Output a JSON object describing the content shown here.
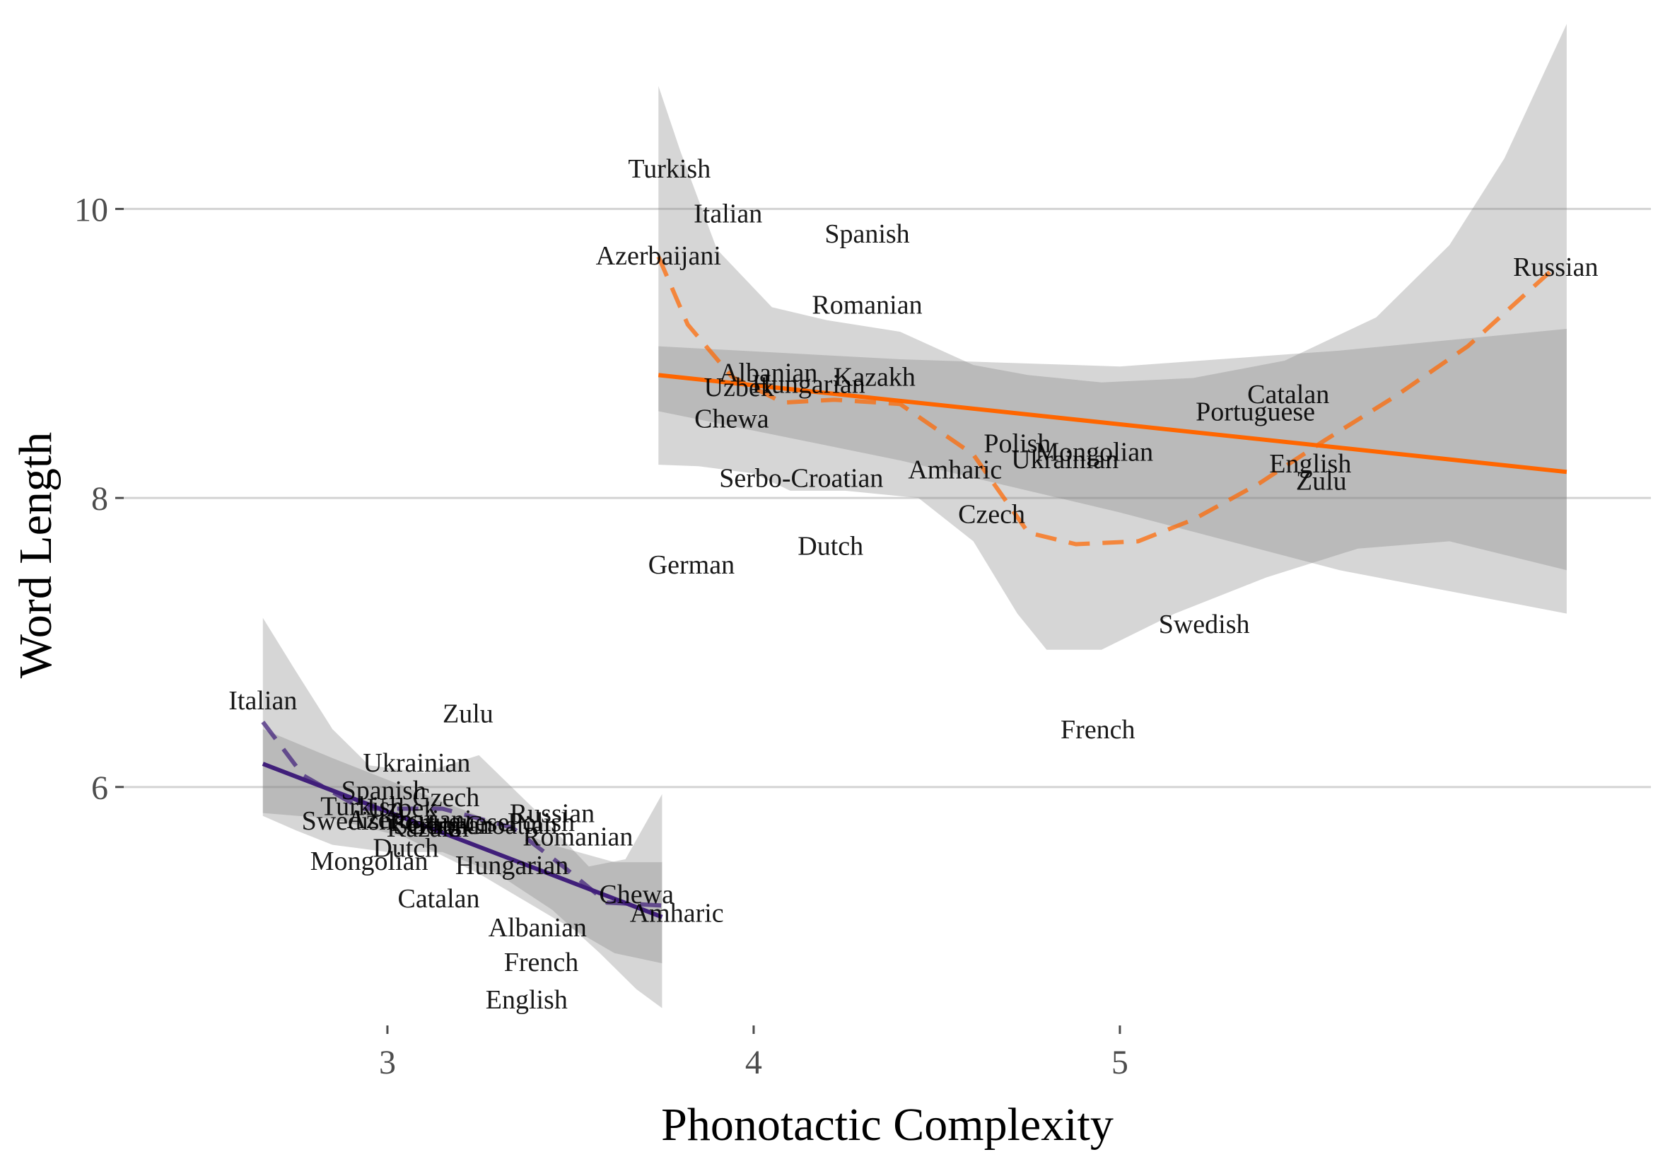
{
  "chart_data": {
    "type": "scatter",
    "xlabel": "Phonotactic Complexity",
    "ylabel": "Word Length",
    "x_ticks": [
      "3",
      "4",
      "5"
    ],
    "y_ticks": [
      "6",
      "8",
      "10"
    ],
    "xlim": [
      2.28,
      6.45
    ],
    "ylim": [
      4.35,
      11.25
    ],
    "grid": "horizontal major lines",
    "legend": "none",
    "series": [
      {
        "color": "#401f7a",
        "points": [
          {
            "label": "Italian",
            "x": 2.66,
            "y": 6.6
          },
          {
            "label": "Zulu",
            "x": 3.22,
            "y": 6.51
          },
          {
            "label": "Ukrainian",
            "x": 3.08,
            "y": 6.17
          },
          {
            "label": "Spanish",
            "x": 2.99,
            "y": 5.98
          },
          {
            "label": "Czech",
            "x": 3.16,
            "y": 5.93
          },
          {
            "label": "Turkish",
            "x": 2.93,
            "y": 5.87
          },
          {
            "label": "Uzbek",
            "x": 3.04,
            "y": 5.86
          },
          {
            "label": "Russian",
            "x": 3.45,
            "y": 5.82
          },
          {
            "label": "Swedish",
            "x": 2.89,
            "y": 5.77
          },
          {
            "label": "Azerbaijani",
            "x": 3.06,
            "y": 5.78
          },
          {
            "label": "Portuguese",
            "x": 3.17,
            "y": 5.76
          },
          {
            "label": "Polish",
            "x": 3.42,
            "y": 5.76
          },
          {
            "label": "Kazakh",
            "x": 3.11,
            "y": 5.72
          },
          {
            "label": "Serbo-Croatian",
            "x": 3.24,
            "y": 5.74
          },
          {
            "label": "German",
            "x": 3.17,
            "y": 5.74
          },
          {
            "label": "Romanian",
            "x": 3.52,
            "y": 5.66
          },
          {
            "label": "Dutch",
            "x": 3.05,
            "y": 5.58
          },
          {
            "label": "Mongolian",
            "x": 2.95,
            "y": 5.49
          },
          {
            "label": "Hungarian",
            "x": 3.34,
            "y": 5.46
          },
          {
            "label": "Catalan",
            "x": 3.14,
            "y": 5.23
          },
          {
            "label": "Chewa",
            "x": 3.68,
            "y": 5.26
          },
          {
            "label": "Amharic",
            "x": 3.79,
            "y": 5.13
          },
          {
            "label": "Albanian",
            "x": 3.41,
            "y": 5.03
          },
          {
            "label": "French",
            "x": 3.42,
            "y": 4.79
          },
          {
            "label": "English",
            "x": 3.38,
            "y": 4.53
          }
        ]
      },
      {
        "color": "#ff6600",
        "points": [
          {
            "label": "Turkish",
            "x": 3.77,
            "y": 10.28
          },
          {
            "label": "Italian",
            "x": 3.93,
            "y": 9.97
          },
          {
            "label": "Spanish",
            "x": 4.31,
            "y": 9.83
          },
          {
            "label": "Azerbaijani",
            "x": 3.74,
            "y": 9.68
          },
          {
            "label": "Russian",
            "x": 6.19,
            "y": 9.6
          },
          {
            "label": "Romanian",
            "x": 4.31,
            "y": 9.34
          },
          {
            "label": "Albanian",
            "x": 4.04,
            "y": 8.87
          },
          {
            "label": "Kazakh",
            "x": 4.33,
            "y": 8.84
          },
          {
            "label": "Hungarian",
            "x": 4.15,
            "y": 8.79
          },
          {
            "label": "Uzbek",
            "x": 3.96,
            "y": 8.77
          },
          {
            "label": "Catalan",
            "x": 5.46,
            "y": 8.72
          },
          {
            "label": "Portuguese",
            "x": 5.37,
            "y": 8.6
          },
          {
            "label": "Chewa",
            "x": 3.94,
            "y": 8.55
          },
          {
            "label": "Polish",
            "x": 4.72,
            "y": 8.38
          },
          {
            "label": "Mongolian",
            "x": 4.93,
            "y": 8.32
          },
          {
            "label": "Ukrainian",
            "x": 4.85,
            "y": 8.27
          },
          {
            "label": "English",
            "x": 5.52,
            "y": 8.24
          },
          {
            "label": "Amharic",
            "x": 4.55,
            "y": 8.2
          },
          {
            "label": "Serbo-Croatian",
            "x": 4.13,
            "y": 8.14
          },
          {
            "label": "Zulu",
            "x": 5.55,
            "y": 8.12
          },
          {
            "label": "Czech",
            "x": 4.65,
            "y": 7.89
          },
          {
            "label": "Dutch",
            "x": 4.21,
            "y": 7.67
          },
          {
            "label": "German",
            "x": 3.83,
            "y": 7.54
          },
          {
            "label": "Swedish",
            "x": 5.23,
            "y": 7.13
          },
          {
            "label": "French",
            "x": 4.94,
            "y": 6.4
          }
        ]
      }
    ],
    "fits": [
      {
        "color": "#401f7a",
        "kind": "linear",
        "line": [
          [
            2.66,
            6.16
          ],
          [
            3.75,
            5.1
          ]
        ],
        "band_upper": [
          [
            2.66,
            6.4
          ],
          [
            2.85,
            6.2
          ],
          [
            3.05,
            6.0
          ],
          [
            3.25,
            5.8
          ],
          [
            3.45,
            5.6
          ],
          [
            3.62,
            5.48
          ],
          [
            3.75,
            5.48
          ]
        ],
        "band_lower": [
          [
            2.66,
            5.82
          ],
          [
            2.85,
            5.78
          ],
          [
            3.05,
            5.65
          ],
          [
            3.25,
            5.4
          ],
          [
            3.45,
            5.1
          ],
          [
            3.62,
            4.85
          ],
          [
            3.75,
            4.78
          ]
        ]
      },
      {
        "color": "#401f7a",
        "kind": "loess",
        "line": [
          [
            2.66,
            6.45
          ],
          [
            2.77,
            6.08
          ],
          [
            2.93,
            5.85
          ],
          [
            3.15,
            5.85
          ],
          [
            3.34,
            5.72
          ],
          [
            3.48,
            5.45
          ],
          [
            3.6,
            5.2
          ],
          [
            3.75,
            5.18
          ]
        ],
        "band_upper": [
          [
            2.66,
            7.17
          ],
          [
            2.75,
            6.8
          ],
          [
            2.85,
            6.4
          ],
          [
            2.95,
            6.15
          ],
          [
            3.1,
            6.1
          ],
          [
            3.25,
            6.22
          ],
          [
            3.4,
            5.85
          ],
          [
            3.55,
            5.45
          ],
          [
            3.65,
            5.5
          ],
          [
            3.75,
            5.95
          ]
        ],
        "band_lower": [
          [
            2.66,
            5.8
          ],
          [
            2.75,
            5.7
          ],
          [
            2.85,
            5.6
          ],
          [
            3.0,
            5.55
          ],
          [
            3.15,
            5.55
          ],
          [
            3.3,
            5.4
          ],
          [
            3.45,
            5.15
          ],
          [
            3.58,
            4.85
          ],
          [
            3.68,
            4.6
          ],
          [
            3.75,
            4.47
          ]
        ]
      },
      {
        "color": "#ff6600",
        "kind": "linear",
        "line": [
          [
            3.74,
            8.85
          ],
          [
            6.22,
            8.18
          ]
        ],
        "band_upper": [
          [
            3.74,
            9.05
          ],
          [
            4.4,
            8.96
          ],
          [
            5.0,
            8.91
          ],
          [
            5.6,
            9.02
          ],
          [
            6.22,
            9.17
          ]
        ],
        "band_lower": [
          [
            3.74,
            8.6
          ],
          [
            4.4,
            8.26
          ],
          [
            5.0,
            7.9
          ],
          [
            5.6,
            7.5
          ],
          [
            6.22,
            7.2
          ]
        ]
      },
      {
        "color": "#ff6600",
        "kind": "loess",
        "line": [
          [
            3.74,
            9.67
          ],
          [
            3.82,
            9.2
          ],
          [
            3.94,
            8.84
          ],
          [
            4.08,
            8.66
          ],
          [
            4.22,
            8.68
          ],
          [
            4.4,
            8.65
          ],
          [
            4.6,
            8.3
          ],
          [
            4.75,
            7.76
          ],
          [
            4.88,
            7.68
          ],
          [
            5.05,
            7.7
          ],
          [
            5.2,
            7.85
          ],
          [
            5.38,
            8.1
          ],
          [
            5.56,
            8.4
          ],
          [
            5.75,
            8.7
          ],
          [
            5.95,
            9.05
          ],
          [
            6.19,
            9.6
          ]
        ],
        "band_upper": [
          [
            3.74,
            10.85
          ],
          [
            3.8,
            10.4
          ],
          [
            3.9,
            9.72
          ],
          [
            4.05,
            9.32
          ],
          [
            4.2,
            9.23
          ],
          [
            4.4,
            9.15
          ],
          [
            4.6,
            8.92
          ],
          [
            4.75,
            8.85
          ],
          [
            4.95,
            8.8
          ],
          [
            5.2,
            8.83
          ],
          [
            5.45,
            8.95
          ],
          [
            5.7,
            9.25
          ],
          [
            5.9,
            9.75
          ],
          [
            6.05,
            10.35
          ],
          [
            6.22,
            11.28
          ]
        ],
        "band_lower": [
          [
            3.74,
            8.23
          ],
          [
            3.85,
            8.22
          ],
          [
            4.0,
            8.17
          ],
          [
            4.1,
            8.05
          ],
          [
            4.25,
            8.05
          ],
          [
            4.45,
            8.0
          ],
          [
            4.6,
            7.7
          ],
          [
            4.72,
            7.2
          ],
          [
            4.8,
            6.95
          ],
          [
            4.95,
            6.95
          ],
          [
            5.15,
            7.2
          ],
          [
            5.4,
            7.45
          ],
          [
            5.65,
            7.65
          ],
          [
            5.9,
            7.7
          ],
          [
            6.22,
            7.5
          ]
        ]
      }
    ]
  }
}
